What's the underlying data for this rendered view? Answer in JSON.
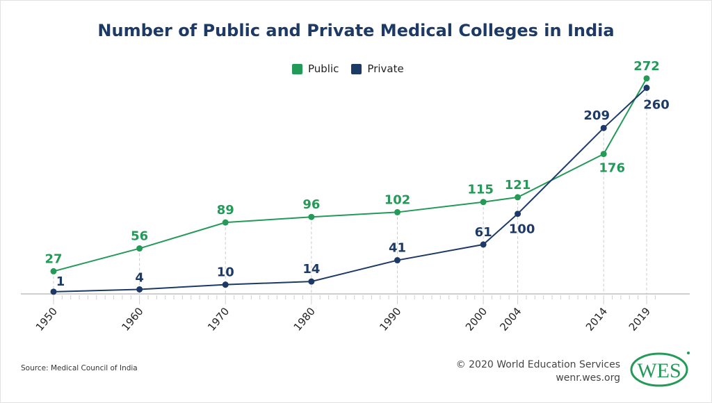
{
  "chart_data": {
    "type": "line",
    "title": "Number of Public and Private Medical Colleges in India",
    "x": [
      1950,
      1960,
      1970,
      1980,
      1990,
      2000,
      2004,
      2014,
      2019
    ],
    "tick_labels": [
      "1950",
      "1960",
      "1970",
      "1980",
      "1990",
      "2000",
      "2004",
      "2014",
      "2019"
    ],
    "series": [
      {
        "name": "Public",
        "color": "#239a57",
        "values": [
          27,
          56,
          89,
          96,
          102,
          115,
          121,
          176,
          272
        ]
      },
      {
        "name": "Private",
        "color": "#1d3a66",
        "values": [
          1,
          4,
          10,
          14,
          41,
          61,
          100,
          209,
          260
        ]
      }
    ],
    "xlim": [
      1950,
      2019
    ],
    "ylim": [
      0,
      272
    ],
    "grid": false,
    "legend_position": "top-center",
    "xlabel": "",
    "ylabel": ""
  },
  "footer": {
    "source": "Source: Medical Council of India",
    "copyright": "© 2020 World Education Services",
    "website": "wenr.wes.org",
    "logo_text": "WES"
  }
}
